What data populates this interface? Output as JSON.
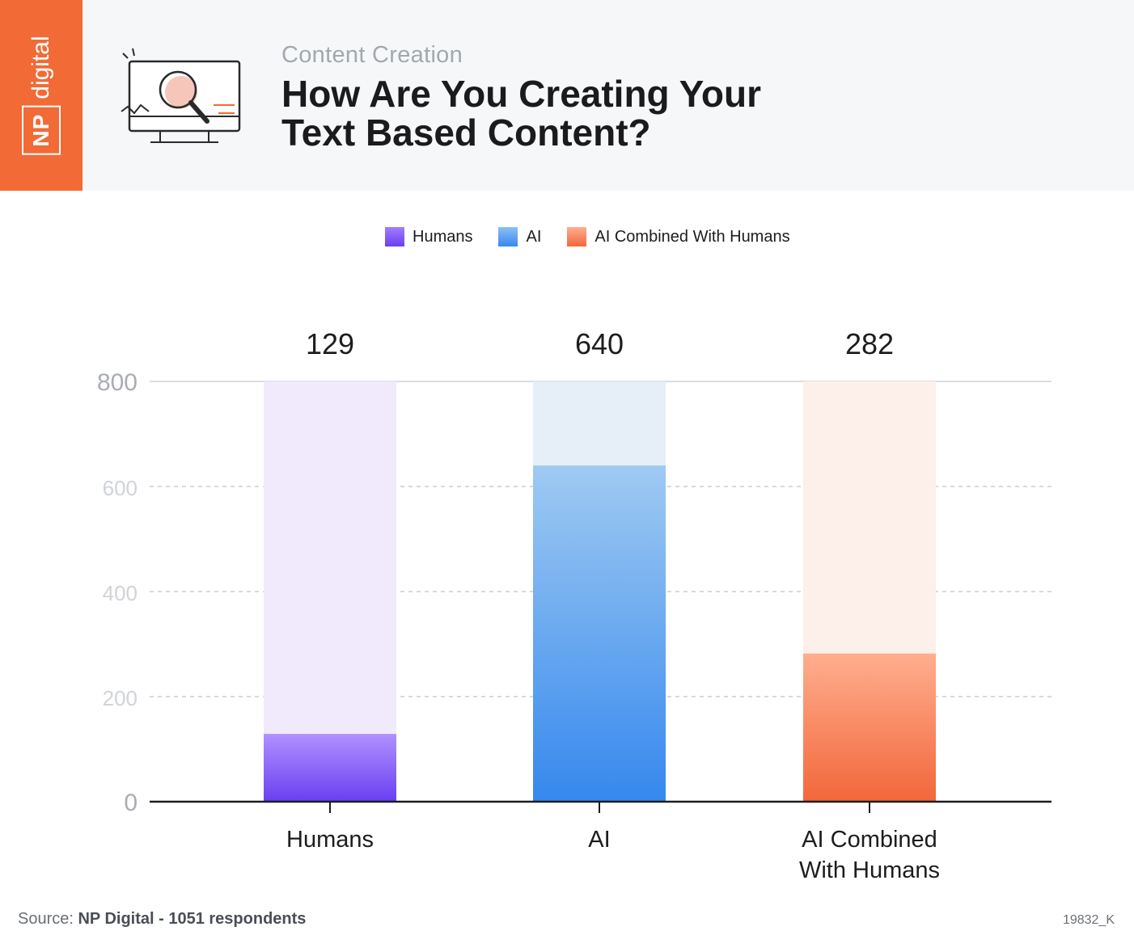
{
  "header": {
    "brand_np": "NP",
    "brand_digital": "digital",
    "kicker": "Content Creation",
    "title_line1": "How Are You Creating Your",
    "title_line2": "Text Based Content?"
  },
  "legend": [
    {
      "label": "Humans",
      "color": "#7a4df2"
    },
    {
      "label": "AI",
      "color": "#4a9cf0"
    },
    {
      "label": "AI Combined With Humans",
      "color": "#f7845a"
    }
  ],
  "chart_data": {
    "type": "bar",
    "categories": [
      [
        "Humans"
      ],
      [
        "AI"
      ],
      [
        "AI Combined",
        "With Humans"
      ]
    ],
    "values": [
      129,
      640,
      282
    ],
    "ylim": [
      0,
      800
    ],
    "yticks": [
      0,
      200,
      400,
      600,
      800
    ],
    "grid": true,
    "legend_position": "top-center",
    "colors": {
      "humans_top": "#b190ff",
      "humans_bottom": "#6a3ff0",
      "humans_track": "#f0eafc",
      "ai_top": "#9fcaf2",
      "ai_bottom": "#3688ee",
      "ai_track": "#e6eef8",
      "combined_top": "#ffae8f",
      "combined_bottom": "#f2673a",
      "combined_track": "#fdefe9"
    }
  },
  "footer": {
    "source_prefix": "Source: ",
    "source_name": "NP Digital - 1051 respondents",
    "code": "19832_K"
  }
}
